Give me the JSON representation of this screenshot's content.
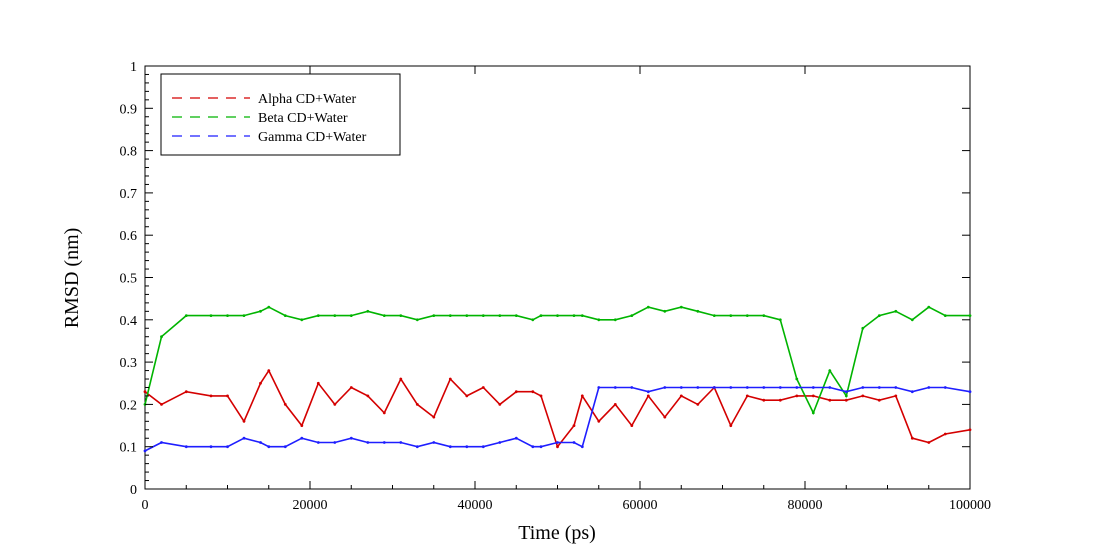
{
  "chart_data": {
    "type": "line",
    "xlabel": "Time (ps)",
    "ylabel": "RMSD (nm)",
    "xlim": [
      0,
      100000
    ],
    "ylim": [
      0,
      1
    ],
    "x_ticks": [
      0,
      20000,
      40000,
      60000,
      80000,
      100000
    ],
    "x_tick_labels": [
      "0",
      "20000",
      "40000",
      "60000",
      "80000",
      "100000"
    ],
    "y_ticks": [
      0,
      0.1,
      0.2,
      0.3,
      0.4,
      0.5,
      0.6,
      0.7,
      0.8,
      0.9,
      1
    ],
    "y_tick_labels": [
      "0",
      "0.1",
      "0.2",
      "0.3",
      "0.4",
      "0.5",
      "0.6",
      "0.7",
      "0.8",
      "0.9",
      "1"
    ],
    "grid": false,
    "legend_position": "top-left",
    "series": [
      {
        "name": "Alpha CD+Water",
        "color": "#d40000",
        "x": [
          0,
          2000,
          5000,
          8000,
          10000,
          12000,
          14000,
          15000,
          17000,
          19000,
          21000,
          23000,
          25000,
          27000,
          29000,
          31000,
          33000,
          35000,
          37000,
          39000,
          41000,
          43000,
          45000,
          47000,
          48000,
          50000,
          52000,
          53000,
          55000,
          57000,
          59000,
          61000,
          63000,
          65000,
          67000,
          69000,
          71000,
          73000,
          75000,
          77000,
          79000,
          81000,
          83000,
          85000,
          87000,
          89000,
          91000,
          93000,
          95000,
          97000,
          100000
        ],
        "y": [
          0.23,
          0.2,
          0.23,
          0.22,
          0.22,
          0.16,
          0.25,
          0.28,
          0.2,
          0.15,
          0.25,
          0.2,
          0.24,
          0.22,
          0.18,
          0.26,
          0.2,
          0.17,
          0.26,
          0.22,
          0.24,
          0.2,
          0.23,
          0.23,
          0.22,
          0.1,
          0.15,
          0.22,
          0.16,
          0.2,
          0.15,
          0.22,
          0.17,
          0.22,
          0.2,
          0.24,
          0.15,
          0.22,
          0.21,
          0.21,
          0.22,
          0.22,
          0.21,
          0.21,
          0.22,
          0.21,
          0.22,
          0.12,
          0.11,
          0.13,
          0.14
        ]
      },
      {
        "name": "Beta CD+Water",
        "color": "#00b400",
        "x": [
          0,
          2000,
          5000,
          8000,
          10000,
          12000,
          14000,
          15000,
          17000,
          19000,
          21000,
          23000,
          25000,
          27000,
          29000,
          31000,
          33000,
          35000,
          37000,
          39000,
          41000,
          43000,
          45000,
          47000,
          48000,
          50000,
          52000,
          53000,
          55000,
          57000,
          59000,
          61000,
          63000,
          65000,
          67000,
          69000,
          71000,
          73000,
          75000,
          77000,
          79000,
          81000,
          83000,
          85000,
          87000,
          89000,
          91000,
          93000,
          95000,
          97000,
          100000
        ],
        "y": [
          0.2,
          0.36,
          0.41,
          0.41,
          0.41,
          0.41,
          0.42,
          0.43,
          0.41,
          0.4,
          0.41,
          0.41,
          0.41,
          0.42,
          0.41,
          0.41,
          0.4,
          0.41,
          0.41,
          0.41,
          0.41,
          0.41,
          0.41,
          0.4,
          0.41,
          0.41,
          0.41,
          0.41,
          0.4,
          0.4,
          0.41,
          0.43,
          0.42,
          0.43,
          0.42,
          0.41,
          0.41,
          0.41,
          0.41,
          0.4,
          0.26,
          0.18,
          0.28,
          0.22,
          0.38,
          0.41,
          0.42,
          0.4,
          0.43,
          0.41,
          0.41
        ]
      },
      {
        "name": "Gamma CD+Water",
        "color": "#1e1eff",
        "x": [
          0,
          2000,
          5000,
          8000,
          10000,
          12000,
          14000,
          15000,
          17000,
          19000,
          21000,
          23000,
          25000,
          27000,
          29000,
          31000,
          33000,
          35000,
          37000,
          39000,
          41000,
          43000,
          45000,
          47000,
          48000,
          50000,
          52000,
          53000,
          55000,
          57000,
          59000,
          61000,
          63000,
          65000,
          67000,
          69000,
          71000,
          73000,
          75000,
          77000,
          79000,
          81000,
          83000,
          85000,
          87000,
          89000,
          91000,
          93000,
          95000,
          97000,
          100000
        ],
        "y": [
          0.09,
          0.11,
          0.1,
          0.1,
          0.1,
          0.12,
          0.11,
          0.1,
          0.1,
          0.12,
          0.11,
          0.11,
          0.12,
          0.11,
          0.11,
          0.11,
          0.1,
          0.11,
          0.1,
          0.1,
          0.1,
          0.11,
          0.12,
          0.1,
          0.1,
          0.11,
          0.11,
          0.1,
          0.24,
          0.24,
          0.24,
          0.23,
          0.24,
          0.24,
          0.24,
          0.24,
          0.24,
          0.24,
          0.24,
          0.24,
          0.24,
          0.24,
          0.24,
          0.23,
          0.24,
          0.24,
          0.24,
          0.23,
          0.24,
          0.24,
          0.23
        ]
      }
    ]
  }
}
